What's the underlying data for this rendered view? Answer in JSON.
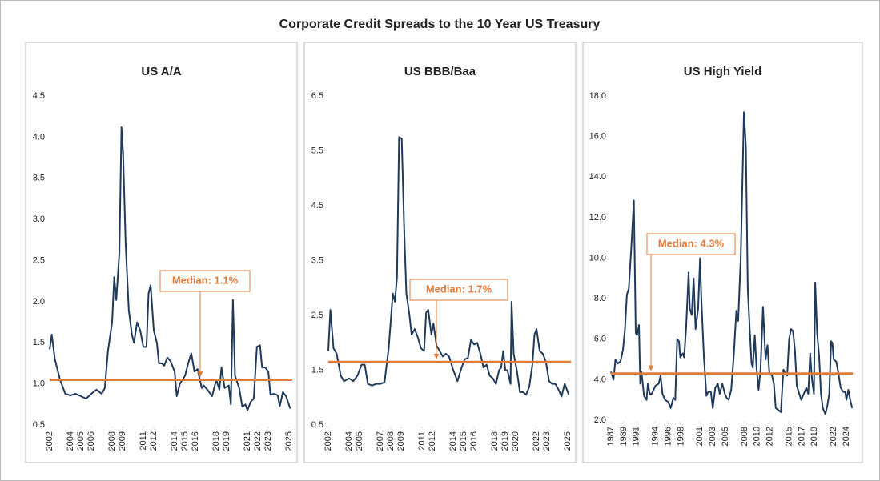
{
  "title": "Corporate Credit Spreads to the 10 Year US Treasury",
  "chart_data": [
    {
      "type": "line",
      "title": "US A/A",
      "color": "#1f3a5a",
      "x": [
        2002,
        2002.2,
        2002.5,
        2003,
        2003.5,
        2004,
        2004.5,
        2005,
        2005.5,
        2006,
        2006.5,
        2007,
        2007.3,
        2007.6,
        2008,
        2008.2,
        2008.4,
        2008.7,
        2008.9,
        2009.05,
        2009.3,
        2009.6,
        2009.9,
        2010.1,
        2010.4,
        2010.7,
        2011,
        2011.3,
        2011.5,
        2011.7,
        2012,
        2012.3,
        2012.5,
        2012.8,
        2013,
        2013.3,
        2013.6,
        2014,
        2014.2,
        2014.5,
        2015,
        2015.3,
        2015.6,
        2015.9,
        2016.2,
        2016.6,
        2016.8,
        2017.2,
        2017.6,
        2018,
        2018.3,
        2018.5,
        2018.8,
        2019.2,
        2019.4,
        2019.6,
        2019.8,
        2020.2,
        2020.5,
        2020.8,
        2021,
        2021.3,
        2021.6,
        2021.9,
        2022.2,
        2022.4,
        2022.7,
        2023,
        2023.2,
        2023.6,
        2023.9,
        2024.1,
        2024.4,
        2024.7,
        2025.1
      ],
      "values": [
        1.42,
        1.6,
        1.3,
        1.05,
        0.88,
        0.86,
        0.88,
        0.85,
        0.82,
        0.88,
        0.93,
        0.88,
        0.95,
        1.4,
        1.75,
        2.3,
        2.02,
        2.6,
        4.12,
        3.8,
        2.7,
        1.9,
        1.6,
        1.5,
        1.75,
        1.65,
        1.45,
        1.45,
        2.1,
        2.2,
        1.65,
        1.5,
        1.25,
        1.25,
        1.22,
        1.32,
        1.28,
        1.15,
        0.85,
        1.0,
        1.1,
        1.25,
        1.37,
        1.15,
        1.18,
        0.95,
        0.98,
        0.92,
        0.85,
        1.05,
        0.93,
        1.2,
        0.95,
        0.98,
        0.75,
        2.02,
        1.1,
        0.95,
        0.72,
        0.75,
        0.68,
        0.78,
        0.82,
        1.45,
        1.47,
        1.2,
        1.2,
        1.15,
        0.87,
        0.88,
        0.86,
        0.73,
        0.9,
        0.85,
        0.7
      ],
      "xlim": [
        2002,
        2025.3
      ],
      "xticks": [
        2002,
        2004,
        2005,
        2006,
        2008,
        2009,
        2011,
        2012,
        2014,
        2015,
        2016,
        2018,
        2019,
        2021,
        2022,
        2023,
        2025
      ],
      "ylim": [
        0.5,
        4.5
      ],
      "yticks": [
        0.5,
        {
          "value": 1,
          "label": "1.0"
        },
        1.5,
        {
          "value": 2,
          "label": "2.0"
        },
        2.5,
        {
          "value": 3,
          "label": "3.0"
        },
        3.5,
        {
          "value": 4,
          "label": "4.0"
        },
        4.5
      ],
      "median": {
        "value": 1.05,
        "label": "Median: 1.1%",
        "color": "#e07b39"
      }
    },
    {
      "type": "line",
      "title": "US BBB/Baa",
      "color": "#1f3a5a",
      "x": [
        2002,
        2002.2,
        2002.5,
        2002.8,
        2003.2,
        2003.5,
        2004,
        2004.4,
        2004.8,
        2005.2,
        2005.5,
        2005.8,
        2006.2,
        2006.6,
        2007,
        2007.4,
        2007.8,
        2008.2,
        2008.4,
        2008.6,
        2008.8,
        2009.05,
        2009.3,
        2009.5,
        2009.8,
        2010,
        2010.3,
        2010.6,
        2010.9,
        2011.2,
        2011.4,
        2011.6,
        2011.9,
        2012.1,
        2012.4,
        2012.7,
        2013,
        2013.3,
        2013.6,
        2014,
        2014.4,
        2014.8,
        2015.1,
        2015.4,
        2015.7,
        2016,
        2016.3,
        2016.6,
        2016.9,
        2017.2,
        2017.5,
        2017.8,
        2018.1,
        2018.4,
        2018.6,
        2018.8,
        2019,
        2019.2,
        2019.5,
        2019.6,
        2019.8,
        2020.1,
        2020.4,
        2020.7,
        2021,
        2021.3,
        2021.6,
        2021.8,
        2022,
        2022.3,
        2022.6,
        2022.9,
        2023.2,
        2023.5,
        2023.8,
        2024.1,
        2024.4,
        2024.7,
        2025.1
      ],
      "values": [
        1.85,
        2.6,
        1.9,
        1.8,
        1.4,
        1.3,
        1.35,
        1.3,
        1.4,
        1.6,
        1.6,
        1.25,
        1.22,
        1.25,
        1.25,
        1.28,
        1.9,
        2.9,
        2.75,
        3.2,
        5.75,
        5.72,
        4.0,
        2.9,
        2.5,
        2.15,
        2.25,
        2.1,
        1.9,
        1.85,
        2.55,
        2.6,
        2.15,
        2.35,
        1.95,
        1.85,
        1.75,
        1.8,
        1.75,
        1.5,
        1.3,
        1.55,
        1.7,
        1.72,
        2.05,
        1.97,
        2.0,
        1.8,
        1.55,
        1.6,
        1.4,
        1.35,
        1.25,
        1.5,
        1.55,
        1.85,
        1.5,
        1.5,
        1.25,
        2.75,
        1.8,
        1.5,
        1.1,
        1.1,
        1.05,
        1.2,
        1.6,
        2.15,
        2.25,
        1.85,
        1.8,
        1.65,
        1.3,
        1.25,
        1.25,
        1.15,
        1.02,
        1.25,
        1.05
      ],
      "xlim": [
        2002,
        2025.3
      ],
      "xticks": [
        2002,
        2004,
        2005,
        2007,
        2008,
        2009,
        2011,
        2012,
        2014,
        2015,
        2016,
        2018,
        2019,
        2020,
        2022,
        2023,
        2025
      ],
      "ylim": [
        0.5,
        6.5
      ],
      "yticks": [
        0.5,
        1.5,
        2.5,
        3.5,
        4.5,
        5.5,
        6.5
      ],
      "median": {
        "value": 1.65,
        "label": "Median: 1.7%",
        "color": "#e07b39"
      }
    },
    {
      "type": "line",
      "title": "US High Yield",
      "color": "#1f3a5a",
      "x": [
        1987,
        1987.4,
        1987.7,
        1988.1,
        1988.5,
        1988.9,
        1989.2,
        1989.5,
        1989.8,
        1990.2,
        1990.6,
        1990.9,
        1991.1,
        1991.4,
        1991.6,
        1991.8,
        1992.2,
        1992.6,
        1992.8,
        1993.1,
        1993.4,
        1994,
        1994.5,
        1994.8,
        1995.1,
        1995.5,
        1996,
        1996.4,
        1996.8,
        1997.1,
        1997.4,
        1997.7,
        1997.9,
        1998.3,
        1998.5,
        1998.8,
        1999.2,
        1999.4,
        1999.7,
        2000,
        2000.3,
        2000.7,
        2001,
        2001.2,
        2001.6,
        2002,
        2002.3,
        2002.7,
        2003,
        2003.4,
        2003.8,
        2004.1,
        2004.5,
        2004.9,
        2005.2,
        2005.5,
        2005.9,
        2006.3,
        2006.7,
        2007,
        2007.4,
        2007.9,
        2008.2,
        2008.5,
        2008.8,
        2009.1,
        2009.3,
        2009.6,
        2009.9,
        2010.2,
        2010.5,
        2010.9,
        2011.3,
        2011.6,
        2011.9,
        2012.3,
        2012.6,
        2012.9,
        2013.3,
        2013.7,
        2014.1,
        2014.4,
        2014.7,
        2015,
        2015.3,
        2015.6,
        2015.9,
        2016.2,
        2016.6,
        2016.9,
        2017.3,
        2017.7,
        2018,
        2018.3,
        2018.6,
        2018.9,
        2019.1,
        2019.4,
        2019.7,
        2020,
        2020.3,
        2020.7,
        2021,
        2021.3,
        2021.6,
        2021.8,
        2022,
        2022.4,
        2022.7,
        2023.1,
        2023.5,
        2023.8,
        2024,
        2024.3,
        2024.6,
        2024.9
      ],
      "values": [
        4.4,
        4.0,
        5.0,
        4.8,
        4.9,
        5.5,
        6.5,
        8.2,
        8.5,
        10.5,
        12.85,
        6.3,
        6.2,
        6.7,
        3.8,
        4.4,
        3.2,
        3.0,
        3.8,
        3.3,
        3.3,
        3.7,
        3.8,
        4.2,
        3.3,
        3.0,
        2.9,
        2.6,
        3.1,
        3.0,
        6.0,
        5.9,
        5.1,
        5.3,
        5.1,
        6.5,
        9.3,
        7.5,
        7.2,
        9.0,
        6.5,
        7.5,
        10.0,
        8.0,
        5.2,
        3.2,
        3.4,
        3.4,
        2.6,
        3.6,
        3.8,
        3.3,
        3.8,
        3.3,
        3.1,
        3.0,
        3.5,
        5.2,
        7.4,
        6.9,
        10.0,
        17.2,
        15.5,
        8.5,
        6.5,
        4.8,
        4.6,
        6.2,
        4.5,
        3.5,
        4.5,
        7.6,
        5.0,
        5.7,
        4.3,
        4.2,
        3.8,
        2.6,
        2.5,
        2.4,
        4.5,
        4.3,
        4.2,
        6.0,
        6.5,
        6.4,
        5.5,
        3.7,
        3.3,
        3.0,
        3.3,
        3.6,
        3.3,
        5.3,
        4.0,
        3.3,
        8.8,
        6.3,
        5.2,
        3.3,
        2.6,
        2.3,
        2.7,
        3.3,
        5.9,
        5.8,
        5.0,
        4.9,
        4.4,
        3.6,
        3.4,
        3.4,
        3.0,
        3.5,
        3.0,
        2.6
      ],
      "xlim": [
        1987,
        2025
      ],
      "xticks": [
        1987,
        1989,
        1991,
        1994,
        1996,
        1998,
        2001,
        2003,
        2005,
        2008,
        2010,
        2012,
        2015,
        2017,
        2019,
        2022,
        2024
      ],
      "ylim": [
        2,
        18
      ],
      "yticks": [
        {
          "value": 2,
          "label": "2.0"
        },
        {
          "value": 4,
          "label": "4.0"
        },
        {
          "value": 6,
          "label": "6.0"
        },
        {
          "value": 8,
          "label": "8.0"
        },
        {
          "value": 10,
          "label": "10.0"
        },
        {
          "value": 12,
          "label": "12.0"
        },
        {
          "value": 14,
          "label": "14.0"
        },
        {
          "value": 16,
          "label": "16.0"
        },
        {
          "value": 18,
          "label": "18.0"
        }
      ],
      "median": {
        "value": 4.3,
        "label": "Median: 4.3%",
        "color": "#e07b39"
      }
    }
  ]
}
